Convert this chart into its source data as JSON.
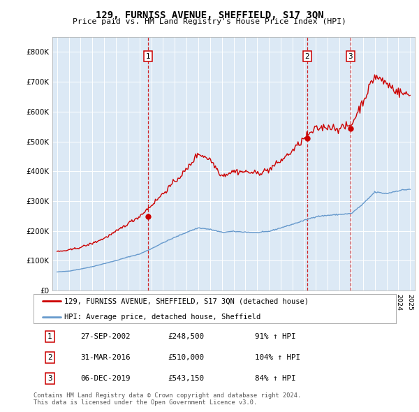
{
  "title": "129, FURNISS AVENUE, SHEFFIELD, S17 3QN",
  "subtitle": "Price paid vs. HM Land Registry's House Price Index (HPI)",
  "background_color": "#dce9f5",
  "plot_bg_color": "#dce9f5",
  "ylim": [
    0,
    850000
  ],
  "yticks": [
    0,
    100000,
    200000,
    300000,
    400000,
    500000,
    600000,
    700000,
    800000
  ],
  "ytick_labels": [
    "£0",
    "£100K",
    "£200K",
    "£300K",
    "£400K",
    "£500K",
    "£600K",
    "£700K",
    "£800K"
  ],
  "sale_decimal_dates": [
    2002.75,
    2016.25,
    2019.92
  ],
  "sale_prices": [
    248500,
    510000,
    543150
  ],
  "sale_labels": [
    "1",
    "2",
    "3"
  ],
  "legend_entries": [
    "129, FURNISS AVENUE, SHEFFIELD, S17 3QN (detached house)",
    "HPI: Average price, detached house, Sheffield"
  ],
  "table_rows": [
    [
      "1",
      "27-SEP-2002",
      "£248,500",
      "91% ↑ HPI"
    ],
    [
      "2",
      "31-MAR-2016",
      "£510,000",
      "104% ↑ HPI"
    ],
    [
      "3",
      "06-DEC-2019",
      "£543,150",
      "84% ↑ HPI"
    ]
  ],
  "footer": "Contains HM Land Registry data © Crown copyright and database right 2024.\nThis data is licensed under the Open Government Licence v3.0.",
  "red_color": "#cc0000",
  "blue_color": "#6699cc",
  "hpi_years": [
    1995,
    1996,
    1997,
    1998,
    1999,
    2000,
    2001,
    2002,
    2003,
    2004,
    2005,
    2006,
    2007,
    2008,
    2009,
    2010,
    2011,
    2012,
    2013,
    2014,
    2015,
    2016,
    2017,
    2018,
    2019,
    2020,
    2021,
    2022,
    2023,
    2024,
    2025
  ],
  "hpi_prices": [
    62000,
    65000,
    72000,
    80000,
    90000,
    100000,
    112000,
    122000,
    140000,
    160000,
    178000,
    195000,
    210000,
    205000,
    195000,
    198000,
    196000,
    194000,
    198000,
    210000,
    222000,
    235000,
    248000,
    252000,
    255000,
    258000,
    290000,
    330000,
    325000,
    335000,
    340000
  ],
  "prop_years": [
    1995,
    1996,
    1997,
    1998,
    1999,
    2000,
    2001,
    2002,
    2003,
    2004,
    2005,
    2006,
    2007,
    2008,
    2009,
    2010,
    2011,
    2012,
    2013,
    2014,
    2015,
    2016,
    2017,
    2018,
    2019,
    2020,
    2021,
    2022,
    2023,
    2024,
    2025
  ],
  "prop_prices": [
    130000,
    135000,
    145000,
    158000,
    175000,
    197000,
    224000,
    248500,
    285000,
    325000,
    365000,
    405000,
    460000,
    440000,
    385000,
    400000,
    398000,
    393000,
    405000,
    435000,
    468000,
    510000,
    542000,
    550000,
    543150,
    555000,
    635000,
    720000,
    695000,
    665000,
    655000
  ],
  "noise_seed": 42,
  "prop_noise": 0.012,
  "hpi_noise": 0.004
}
